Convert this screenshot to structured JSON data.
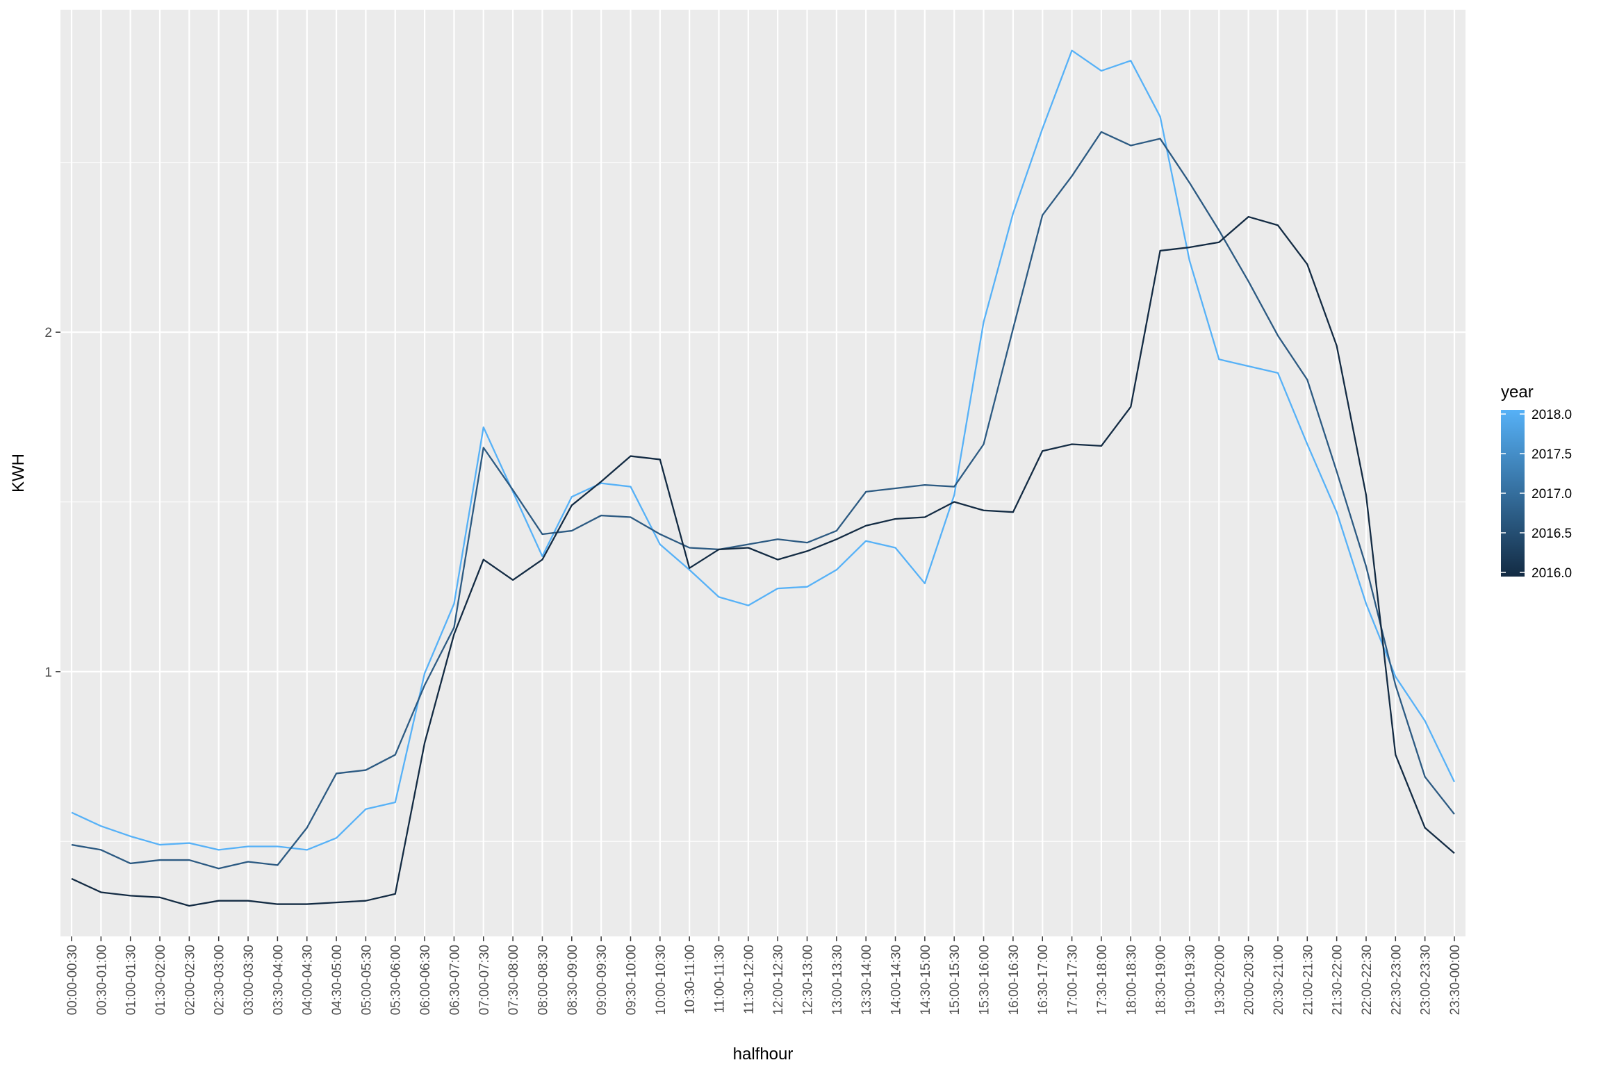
{
  "chart_data": {
    "type": "line",
    "xlabel": "halfhour",
    "ylabel": "KWH",
    "ylim": [
      0.22,
      2.95
    ],
    "y_ticks": [
      "1",
      "2"
    ],
    "grid": true,
    "legend": {
      "title": "year",
      "placement": "right",
      "type": "colorbar",
      "labels": [
        "2018.0",
        "2017.5",
        "2017.0",
        "2016.5",
        "2016.0"
      ],
      "range": [
        2016,
        2018
      ],
      "color_low": "#132B43",
      "color_high": "#56B1F7"
    },
    "categories": [
      "00:00-00:30",
      "00:30-01:00",
      "01:00-01:30",
      "01:30-02:00",
      "02:00-02:30",
      "02:30-03:00",
      "03:00-03:30",
      "03:30-04:00",
      "04:00-04:30",
      "04:30-05:00",
      "05:00-05:30",
      "05:30-06:00",
      "06:00-06:30",
      "06:30-07:00",
      "07:00-07:30",
      "07:30-08:00",
      "08:00-08:30",
      "08:30-09:00",
      "09:00-09:30",
      "09:30-10:00",
      "10:00-10:30",
      "10:30-11:00",
      "11:00-11:30",
      "11:30-12:00",
      "12:00-12:30",
      "12:30-13:00",
      "13:00-13:30",
      "13:30-14:00",
      "14:00-14:30",
      "14:30-15:00",
      "15:00-15:30",
      "15:30-16:00",
      "16:00-16:30",
      "16:30-17:00",
      "17:00-17:30",
      "17:30-18:00",
      "18:00-18:30",
      "18:30-19:00",
      "19:00-19:30",
      "19:30-20:00",
      "20:00-20:30",
      "20:30-21:00",
      "21:00-21:30",
      "21:30-22:00",
      "22:00-22:30",
      "22:30-23:00",
      "23:00-23:30",
      "23:30-00:00"
    ],
    "series": [
      {
        "year": 2016,
        "color": "#132B43",
        "values": [
          0.39,
          0.35,
          0.34,
          0.335,
          0.31,
          0.325,
          0.325,
          0.315,
          0.315,
          0.32,
          0.325,
          0.345,
          0.79,
          1.11,
          1.33,
          1.27,
          1.33,
          1.49,
          1.56,
          1.635,
          1.625,
          1.305,
          1.36,
          1.365,
          1.33,
          1.355,
          1.39,
          1.43,
          1.45,
          1.455,
          1.5,
          1.475,
          1.47,
          1.65,
          1.67,
          1.665,
          1.78,
          2.24,
          2.25,
          2.265,
          2.34,
          2.315,
          2.2,
          1.96,
          1.52,
          0.755,
          0.54,
          0.465
        ]
      },
      {
        "year": 2017,
        "color": "#2C5A82",
        "values": [
          0.49,
          0.475,
          0.435,
          0.445,
          0.445,
          0.42,
          0.44,
          0.43,
          0.54,
          0.7,
          0.71,
          0.755,
          0.96,
          1.13,
          1.66,
          1.535,
          1.405,
          1.415,
          1.46,
          1.455,
          1.405,
          1.365,
          1.36,
          1.375,
          1.39,
          1.38,
          1.415,
          1.53,
          1.54,
          1.55,
          1.545,
          1.67,
          2.01,
          2.345,
          2.46,
          2.59,
          2.55,
          2.57,
          2.44,
          2.3,
          2.15,
          1.99,
          1.86,
          1.59,
          1.31,
          0.96,
          0.69,
          0.58
        ]
      },
      {
        "year": 2018,
        "color": "#56B1F7",
        "values": [
          0.585,
          0.545,
          0.515,
          0.49,
          0.495,
          0.475,
          0.485,
          0.485,
          0.475,
          0.51,
          0.595,
          0.615,
          0.995,
          1.2,
          1.72,
          1.53,
          1.34,
          1.515,
          1.555,
          1.545,
          1.375,
          1.3,
          1.22,
          1.195,
          1.245,
          1.25,
          1.3,
          1.385,
          1.365,
          1.26,
          1.52,
          2.03,
          2.35,
          2.6,
          2.83,
          2.77,
          2.8,
          2.635,
          2.21,
          1.92,
          1.9,
          1.88,
          1.67,
          1.47,
          1.2,
          0.985,
          0.855,
          0.675
        ]
      }
    ]
  }
}
